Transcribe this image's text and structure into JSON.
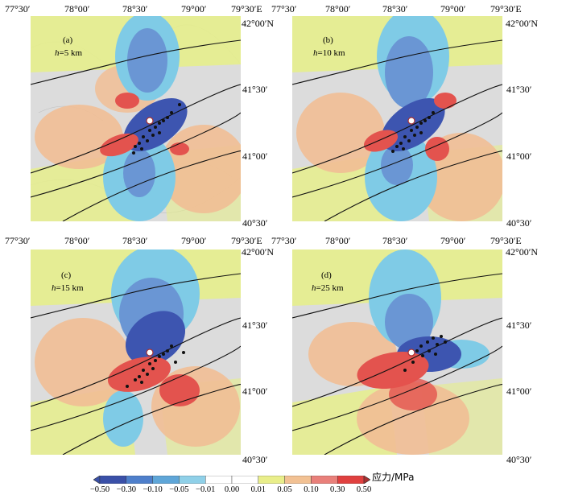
{
  "top_lon_labels": [
    "77°30′",
    "78°00′",
    "78°30′",
    "79°00′",
    "79°30′E"
  ],
  "bottom_lon_labels": [
    "77°30′",
    "78°00′",
    "78°30′",
    "79°00′",
    "79°30′E"
  ],
  "lat_labels_top": [
    "42°00′N",
    "41°30′",
    "41°00′",
    "40°30′"
  ],
  "lat_labels_bottom": [
    "42°00′N",
    "41°30′",
    "41°00′",
    "40°30′"
  ],
  "panels": [
    {
      "id": "a",
      "tag": "(a)",
      "depth_var": "h",
      "depth_text": "=5 km"
    },
    {
      "id": "b",
      "tag": "(b)",
      "depth_var": "h",
      "depth_text": "=10 km"
    },
    {
      "id": "c",
      "tag": "(c)",
      "depth_var": "h",
      "depth_text": "=15 km"
    },
    {
      "id": "d",
      "tag": "(d)",
      "depth_var": "h",
      "depth_text": "=25 km"
    }
  ],
  "colorbar": {
    "title": "应力/MPa",
    "ticks": [
      "−0.50",
      "−0.30",
      "−0.10",
      "−0.05",
      "−0.01",
      "0.00",
      "0.01",
      "0.05",
      "0.10",
      "0.30",
      "0.50"
    ],
    "colors": [
      "#3a50a8",
      "#4e7fcb",
      "#5fa6d8",
      "#8fd0e8",
      "#ffffff",
      "#ffffff",
      "#e9ee8a",
      "#f2c193",
      "#e9807a",
      "#e0403f",
      "#a83232"
    ]
  },
  "colors": {
    "neg_strong": "#3d55b0",
    "neg_mid": "#6a96d4",
    "neg_light": "#7fcbe6",
    "pos_light": "#e6ee8c",
    "pos_orange": "#f1be95",
    "pos_red": "#e3534e",
    "pos_dark": "#a83232",
    "terrain": "#dcdcdc"
  }
}
